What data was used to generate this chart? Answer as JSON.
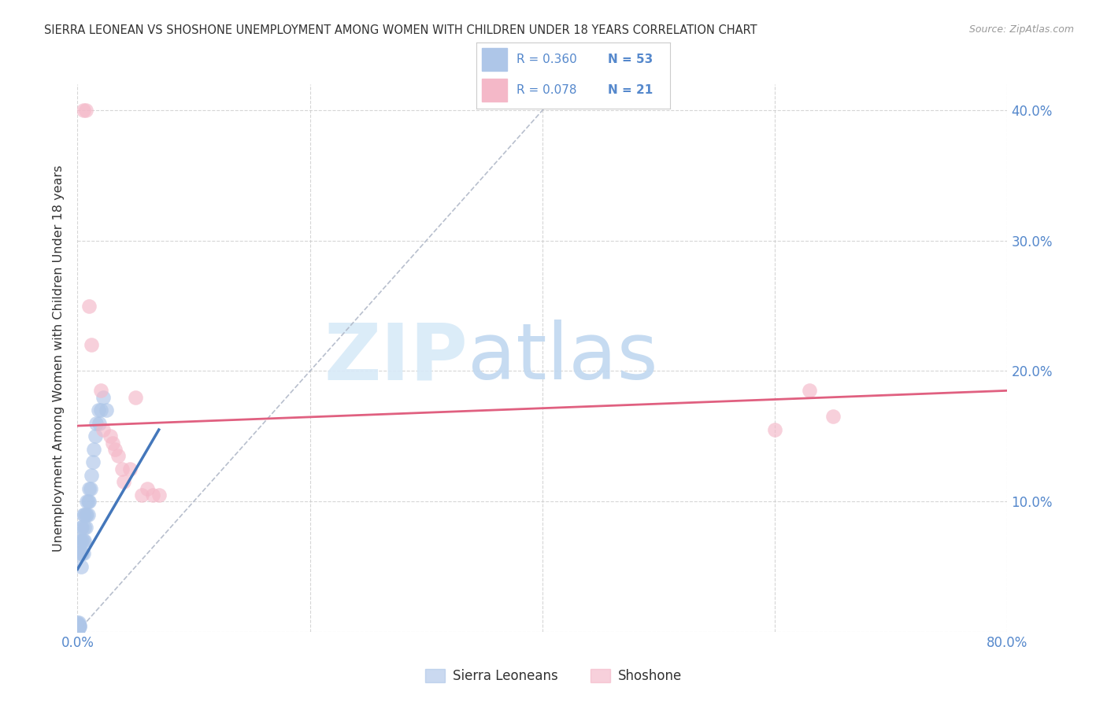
{
  "title": "SIERRA LEONEAN VS SHOSHONE UNEMPLOYMENT AMONG WOMEN WITH CHILDREN UNDER 18 YEARS CORRELATION CHART",
  "source": "Source: ZipAtlas.com",
  "ylabel": "Unemployment Among Women with Children Under 18 years",
  "xlim": [
    0.0,
    0.8
  ],
  "ylim": [
    0.0,
    0.42
  ],
  "xticks": [
    0.0,
    0.2,
    0.4,
    0.6,
    0.8
  ],
  "yticks": [
    0.0,
    0.1,
    0.2,
    0.3,
    0.4
  ],
  "xticklabels": [
    "0.0%",
    "",
    "",
    "",
    "80.0%"
  ],
  "yticklabels_right": [
    "",
    "10.0%",
    "20.0%",
    "30.0%",
    "40.0%"
  ],
  "background_color": "#ffffff",
  "grid_color": "#cccccc",
  "legend_R1": "R = 0.360",
  "legend_N1": "N = 53",
  "legend_R2": "R = 0.078",
  "legend_N2": "N = 21",
  "sierra_color": "#aec6e8",
  "shoshone_color": "#f4b8c8",
  "sierra_line_color": "#4477bb",
  "shoshone_line_color": "#e06080",
  "diag_line_color": "#b0b8c8",
  "tick_color": "#5588cc",
  "sierra_x": [
    0.0,
    0.0,
    0.0,
    0.0,
    0.0,
    0.0,
    0.0,
    0.0,
    0.0,
    0.0,
    0.0,
    0.0,
    0.001,
    0.001,
    0.001,
    0.001,
    0.001,
    0.002,
    0.002,
    0.002,
    0.002,
    0.003,
    0.003,
    0.003,
    0.003,
    0.004,
    0.004,
    0.004,
    0.005,
    0.005,
    0.005,
    0.006,
    0.006,
    0.006,
    0.007,
    0.007,
    0.008,
    0.008,
    0.009,
    0.009,
    0.01,
    0.01,
    0.011,
    0.012,
    0.013,
    0.014,
    0.015,
    0.016,
    0.018,
    0.019,
    0.02,
    0.022,
    0.025
  ],
  "sierra_y": [
    0.0,
    0.0,
    0.0,
    0.001,
    0.001,
    0.002,
    0.002,
    0.003,
    0.004,
    0.005,
    0.006,
    0.007,
    0.003,
    0.004,
    0.005,
    0.006,
    0.007,
    0.004,
    0.005,
    0.06,
    0.07,
    0.05,
    0.06,
    0.07,
    0.08,
    0.06,
    0.07,
    0.08,
    0.06,
    0.07,
    0.09,
    0.07,
    0.08,
    0.09,
    0.08,
    0.09,
    0.09,
    0.1,
    0.09,
    0.1,
    0.1,
    0.11,
    0.11,
    0.12,
    0.13,
    0.14,
    0.15,
    0.16,
    0.17,
    0.16,
    0.17,
    0.18,
    0.17
  ],
  "shoshone_x": [
    0.005,
    0.007,
    0.01,
    0.012,
    0.02,
    0.022,
    0.028,
    0.03,
    0.032,
    0.035,
    0.038,
    0.04,
    0.045,
    0.05,
    0.055,
    0.06,
    0.065,
    0.07,
    0.6,
    0.63,
    0.65
  ],
  "shoshone_y": [
    0.4,
    0.4,
    0.25,
    0.22,
    0.185,
    0.155,
    0.15,
    0.145,
    0.14,
    0.135,
    0.125,
    0.115,
    0.125,
    0.18,
    0.105,
    0.11,
    0.105,
    0.105,
    0.155,
    0.185,
    0.165
  ],
  "sierra_trend_x": [
    0.0,
    0.07
  ],
  "sierra_trend_y": [
    0.048,
    0.155
  ],
  "shoshone_trend_x": [
    0.0,
    0.8
  ],
  "shoshone_trend_y": [
    0.158,
    0.185
  ]
}
